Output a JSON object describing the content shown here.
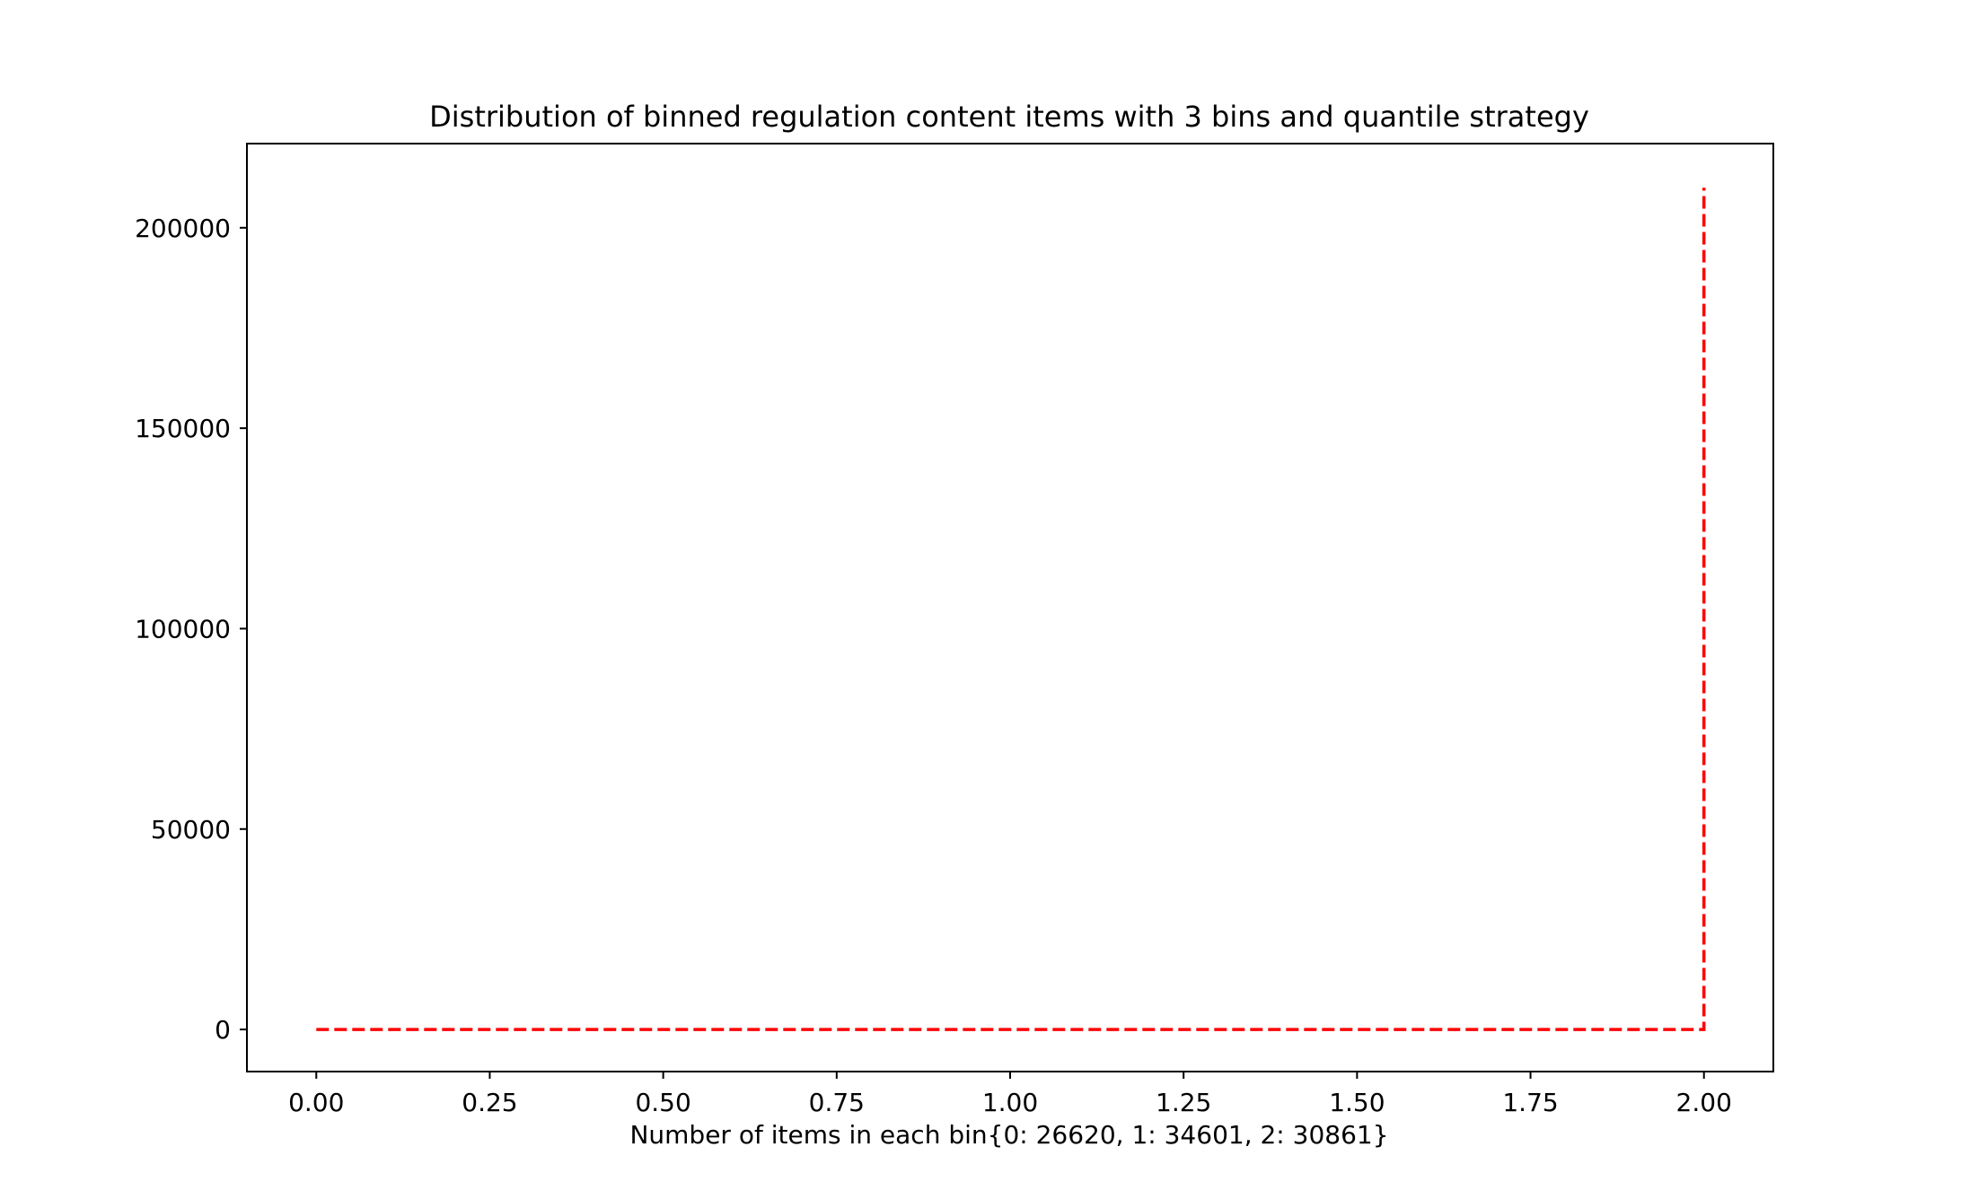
{
  "chart_data": {
    "type": "line",
    "title": "Distribution of binned regulation content items with 3 bins and quantile strategy",
    "xlabel": "Number of items in each bin{0: 26620, 1: 34601, 2: 30861}",
    "ylabel": "",
    "xlim": [
      -0.1,
      2.1
    ],
    "ylim": [
      -10500,
      221000
    ],
    "x_ticks": [
      0.0,
      0.25,
      0.5,
      0.75,
      1.0,
      1.25,
      1.5,
      1.75,
      2.0
    ],
    "x_tick_labels": [
      "0.00",
      "0.25",
      "0.50",
      "0.75",
      "1.00",
      "1.25",
      "1.50",
      "1.75",
      "2.00"
    ],
    "y_ticks": [
      0,
      50000,
      100000,
      150000,
      200000
    ],
    "y_tick_labels": [
      "0",
      "50000",
      "100000",
      "150000",
      "200000"
    ],
    "grid": false,
    "series": [
      {
        "line_style": "dashed",
        "color": "#ff0000",
        "x": [
          0.0,
          2.0,
          2.0
        ],
        "y": [
          0,
          0,
          210000
        ]
      }
    ]
  }
}
